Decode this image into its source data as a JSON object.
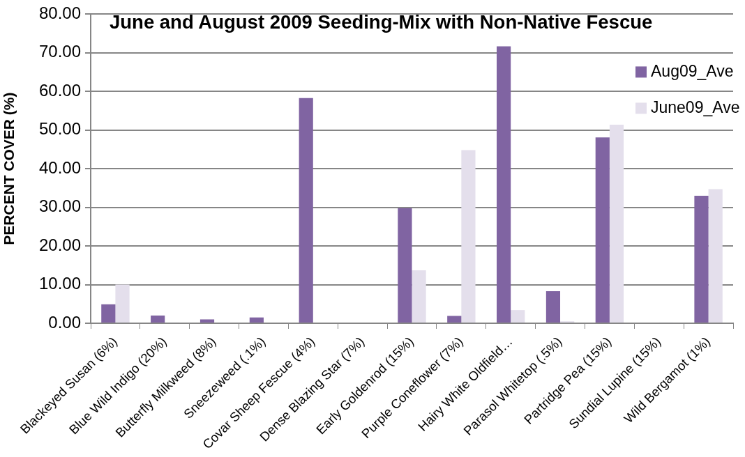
{
  "chart_data": {
    "type": "bar",
    "title": "June and August 2009 Seeding-Mix with Non-Native Fescue",
    "ylabel": "PERCENT COVER (%)",
    "categories": [
      "Blackeyed Susan (6%)",
      "Blue Wild Indigo (20%)",
      "Butterfly Milkweed (8%)",
      "Sneezeweed (.1%)",
      "Covar Sheep Fescue (4%)",
      "Dense Blazing Star (7%)",
      "Early Goldenrod (15%)",
      "Purple Coneflower (7%)",
      "Hairy White Oldfield…",
      "Parasol Whitetop (.5%)",
      "Partridge Pea (15%)",
      "Sundial Lupine (15%)",
      "Wild Bergamot (1%)"
    ],
    "series": [
      {
        "name": "Aug09_Ave",
        "color": "#8064a2",
        "values": [
          4.9,
          2.0,
          1.0,
          1.5,
          58.3,
          0,
          29.8,
          1.9,
          71.7,
          8.3,
          48.1,
          0,
          33.0
        ]
      },
      {
        "name": "June09_Ave",
        "color": "#e4dfec",
        "values": [
          10.0,
          0.2,
          0.2,
          0,
          0,
          0,
          13.7,
          44.8,
          3.4,
          0.5,
          51.4,
          0.2,
          34.7
        ]
      }
    ],
    "ylim": [
      0,
      80
    ],
    "yticks": [
      {
        "value": 0,
        "label": "0.00"
      },
      {
        "value": 10,
        "label": "10.00"
      },
      {
        "value": 20,
        "label": "20.00"
      },
      {
        "value": 30,
        "label": "30.00"
      },
      {
        "value": 40,
        "label": "40.00"
      },
      {
        "value": 50,
        "label": "50.00"
      },
      {
        "value": 60,
        "label": "60.00"
      },
      {
        "value": 70,
        "label": "70.00"
      },
      {
        "value": 80,
        "label": "80.00"
      }
    ],
    "grid": "y",
    "legend": "top right"
  }
}
